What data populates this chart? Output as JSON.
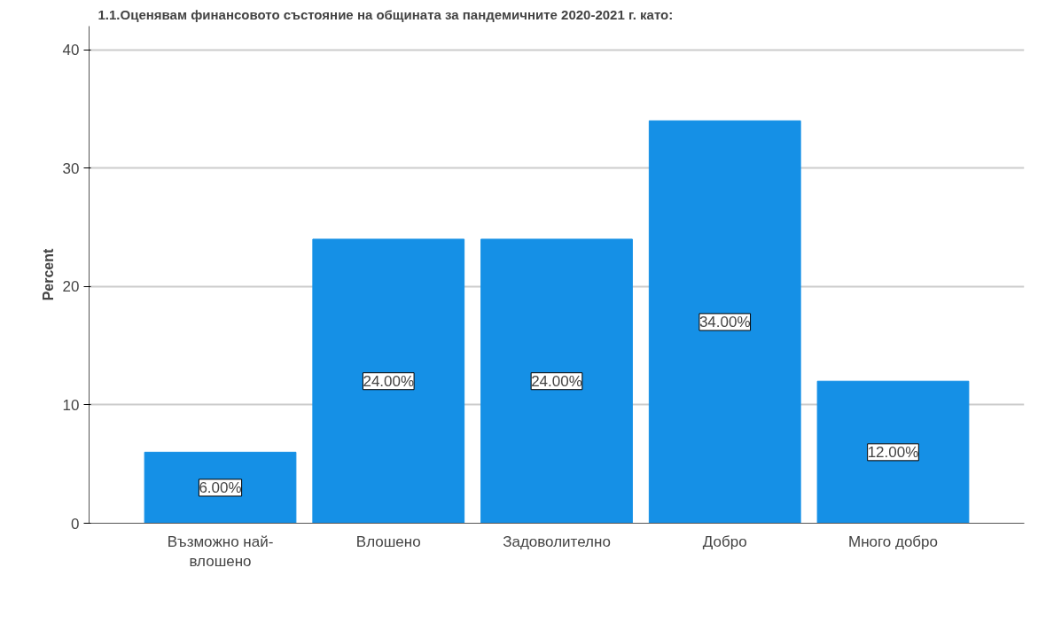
{
  "chart_data": {
    "type": "bar",
    "title": "1.1.Оценявам финансовото състояние на общината за пандемичните 2020-2021 г. като:",
    "ylabel": "Percent",
    "categories": [
      "Възможно най-влошено",
      "Влошено",
      "Задоволително",
      "Добро",
      "Много добро"
    ],
    "values": [
      6,
      24,
      24,
      34,
      12
    ],
    "value_labels": [
      "6.00%",
      "24.00%",
      "24.00%",
      "34.00%",
      "12.00%"
    ],
    "color": "#1590e6",
    "ylim": [
      0,
      42
    ],
    "yticks": [
      0,
      10,
      20,
      30,
      40
    ],
    "grid": "y"
  }
}
